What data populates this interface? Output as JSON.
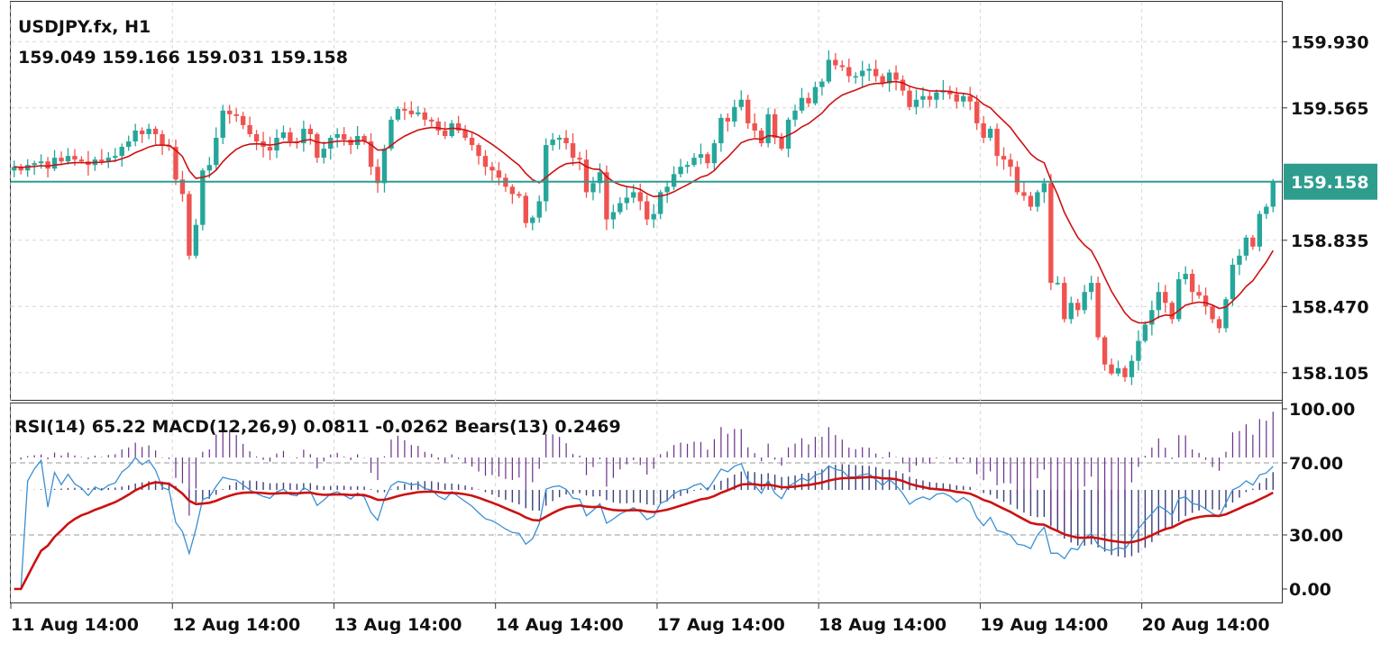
{
  "header": {
    "symbol": "USDJPY.fx, H1",
    "ohlc": "159.049 159.166 159.031 159.158",
    "indicators": "RSI(14) 65.22 MACD(12,26,9) 0.0811 -0.0262 Bears(13) 0.2469"
  },
  "colors": {
    "bull": "#26a69a",
    "bear": "#ef5350",
    "ma": "#cc1111",
    "rsi": "#3b8fd3",
    "rsi_ma": "#cc1111",
    "histogram": "#3a3f7a",
    "bears_power": "#6a2f8a",
    "price_line": "#2e9d8e"
  },
  "chart_data": [
    {
      "type": "candlestick",
      "title": "USDJPY.fx, H1",
      "ylim": [
        157.95,
        160.15
      ],
      "yticks": [
        "159.930",
        "159.565",
        "158.835",
        "158.470",
        "158.105"
      ],
      "current_price": "159.158",
      "xticks": [
        "11 Aug 14:00",
        "12 Aug 14:00",
        "13 Aug 14:00",
        "14 Aug 14:00",
        "17 Aug 14:00",
        "18 Aug 14:00",
        "19 Aug 14:00",
        "20 Aug 14:00"
      ],
      "close": [
        159.24,
        159.22,
        159.25,
        159.26,
        159.27,
        159.23,
        159.29,
        159.27,
        159.3,
        159.28,
        159.27,
        159.25,
        159.28,
        159.27,
        159.29,
        159.3,
        159.35,
        159.38,
        159.44,
        159.42,
        159.45,
        159.42,
        159.36,
        159.35,
        159.17,
        159.09,
        158.75,
        158.92,
        159.22,
        159.25,
        159.4,
        159.55,
        159.53,
        159.52,
        159.47,
        159.42,
        159.38,
        159.35,
        159.33,
        159.4,
        159.43,
        159.38,
        159.37,
        159.45,
        159.42,
        159.29,
        159.34,
        159.4,
        159.42,
        159.39,
        159.36,
        159.41,
        159.38,
        159.24,
        159.15,
        159.34,
        159.5,
        159.56,
        159.55,
        159.53,
        159.54,
        159.5,
        159.49,
        159.44,
        159.41,
        159.48,
        159.44,
        159.4,
        159.36,
        159.3,
        159.24,
        159.22,
        159.18,
        159.13,
        159.09,
        159.08,
        158.93,
        158.96,
        159.05,
        159.36,
        159.39,
        159.4,
        159.37,
        159.29,
        159.28,
        159.1,
        159.15,
        159.21,
        158.95,
        158.99,
        159.04,
        159.07,
        159.1,
        159.05,
        158.95,
        158.98,
        159.1,
        159.13,
        159.2,
        159.24,
        159.25,
        159.29,
        159.31,
        159.26,
        159.37,
        159.51,
        159.49,
        159.57,
        159.61,
        159.48,
        159.44,
        159.37,
        159.53,
        159.4,
        159.34,
        159.5,
        159.55,
        159.62,
        159.59,
        159.68,
        159.71,
        159.83,
        159.8,
        159.79,
        159.74,
        159.74,
        159.77,
        159.78,
        159.74,
        159.7,
        159.76,
        159.72,
        159.66,
        159.57,
        159.61,
        159.63,
        159.61,
        159.65,
        159.66,
        159.64,
        159.6,
        159.63,
        159.6,
        159.48,
        159.4,
        159.45,
        159.3,
        159.28,
        159.24,
        159.1,
        159.08,
        159.02,
        159.1,
        159.15,
        158.6,
        158.6,
        158.4,
        158.49,
        158.45,
        158.55,
        158.6,
        158.3,
        158.15,
        158.1,
        158.13,
        158.08,
        158.17,
        158.28,
        158.37,
        158.45,
        158.55,
        158.49,
        158.4,
        158.62,
        158.65,
        158.55,
        158.53,
        158.47,
        158.4,
        158.35,
        158.51,
        158.7,
        158.75,
        158.85,
        158.8,
        158.98,
        159.02,
        159.158
      ],
      "ma_start": 159.24,
      "ma_period": 13
    },
    {
      "type": "rsi_macd_bears",
      "title": "RSI(14) 65.22 MACD(12,26,9) 0.0811 -0.0262 Bears(13) 0.2469",
      "ylim": [
        -8,
        103
      ],
      "yticks": [
        "100.00",
        "70.00",
        "30.00",
        "0.00"
      ],
      "levels": [
        70,
        30
      ]
    }
  ]
}
